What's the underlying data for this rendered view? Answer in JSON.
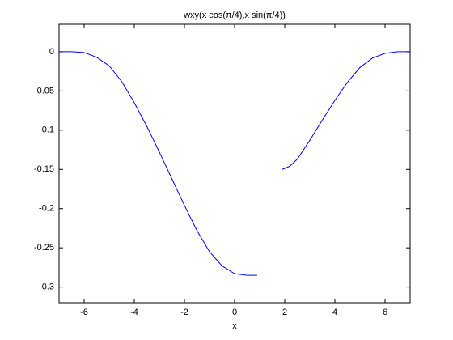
{
  "chart_data": {
    "type": "line",
    "title": "wxy(x cos(π/4),x sin(π/4))",
    "x_label": "x",
    "x": [
      -7,
      -6.5,
      -6,
      -5.5,
      -5,
      -4.5,
      -4,
      -3.5,
      -3,
      -2.5,
      -2,
      -1.5,
      -1,
      -0.5,
      0,
      0.5,
      0.9,
      1.4,
      1.9,
      2.2,
      2.5,
      3,
      3.5,
      4,
      4.5,
      5,
      5.5,
      6,
      6.5,
      7
    ],
    "series": [
      {
        "name": "wxy",
        "color": "#0000ff",
        "values": [
          0,
          0,
          -0.001,
          -0.007,
          -0.018,
          -0.038,
          -0.065,
          -0.095,
          -0.128,
          -0.162,
          -0.196,
          -0.228,
          -0.255,
          -0.273,
          -0.283,
          -0.285,
          -0.285,
          null,
          -0.15,
          -0.146,
          -0.137,
          -0.113,
          -0.087,
          -0.062,
          -0.039,
          -0.02,
          -0.008,
          -0.002,
          0,
          0
        ]
      }
    ],
    "xlim": [
      -7,
      7
    ],
    "xticks": [
      -6,
      -4,
      -2,
      0,
      2,
      4,
      6
    ],
    "ylim": [
      -0.32,
      0.035
    ],
    "yticks": [
      -0.3,
      -0.25,
      -0.2,
      -0.15,
      -0.1,
      -0.05,
      0
    ],
    "grid": false
  }
}
